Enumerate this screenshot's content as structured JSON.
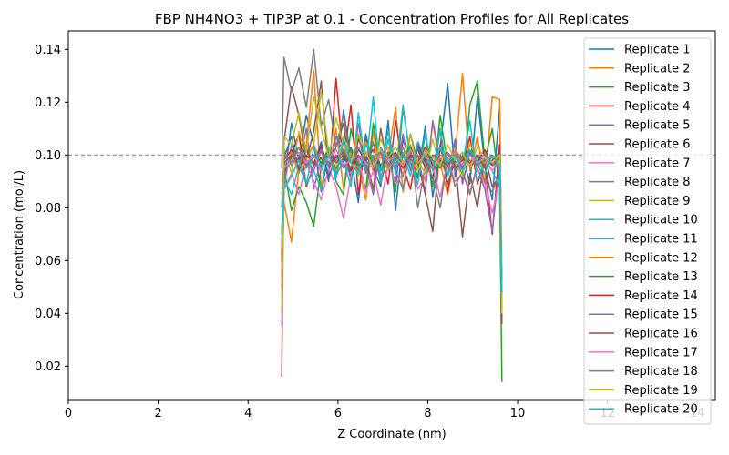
{
  "chart_data": {
    "type": "line",
    "title": "FBP NH4NO3 + TIP3P at 0.1 - Concentration Profiles for All Replicates",
    "xlabel": "Z Coordinate (nm)",
    "ylabel": "Concentration (mol/L)",
    "xlim": [
      0,
      14.4
    ],
    "ylim": [
      0.007,
      0.147
    ],
    "xticks": [
      "0",
      "2",
      "4",
      "6",
      "8",
      "10",
      "12",
      "14"
    ],
    "yticks": [
      "0.02",
      "0.04",
      "0.06",
      "0.08",
      "0.10",
      "0.12",
      "0.14"
    ],
    "reference_line": {
      "y": 0.1,
      "style": "dashed",
      "color": "#808080"
    },
    "grid": false,
    "legend_position": "top-right",
    "colors": [
      "#1f77b4",
      "#ff7f0e",
      "#2ca02c",
      "#d62728",
      "#9467bd",
      "#8c564b",
      "#e377c2",
      "#7f7f7f",
      "#bcbd22",
      "#17becf"
    ],
    "z_start": 4.75,
    "z_end": 9.65,
    "z_step": 0.05,
    "series": [
      {
        "name": "Replicate 1",
        "start": 0.06,
        "end": 0.045,
        "values": [
          0.09,
          0.112,
          0.098,
          0.115,
          0.104,
          0.086,
          0.101,
          0.093,
          0.117,
          0.099,
          0.082,
          0.108,
          0.095,
          0.088,
          0.113,
          0.079,
          0.106,
          0.097,
          0.091,
          0.111,
          0.084,
          0.103,
          0.127,
          0.092,
          0.1,
          0.089,
          0.122,
          0.096,
          0.083,
          0.118
        ]
      },
      {
        "name": "Replicate 2",
        "start": 0.05,
        "end": 0.048,
        "values": [
          0.082,
          0.067,
          0.095,
          0.104,
          0.132,
          0.088,
          0.093,
          0.11,
          0.087,
          0.101,
          0.096,
          0.083,
          0.109,
          0.092,
          0.099,
          0.118,
          0.086,
          0.104,
          0.095,
          0.09,
          0.112,
          0.097,
          0.085,
          0.1,
          0.131,
          0.094,
          0.107,
          0.089,
          0.122,
          0.121
        ]
      },
      {
        "name": "Replicate 3",
        "start": 0.07,
        "end": 0.014,
        "values": [
          0.095,
          0.079,
          0.088,
          0.082,
          0.073,
          0.096,
          0.103,
          0.09,
          0.085,
          0.11,
          0.097,
          0.087,
          0.112,
          0.094,
          0.101,
          0.086,
          0.118,
          0.099,
          0.092,
          0.108,
          0.088,
          0.115,
          0.096,
          0.104,
          0.09,
          0.119,
          0.128,
          0.098,
          0.11,
          0.087
        ]
      },
      {
        "name": "Replicate 4",
        "start": 0.07,
        "end": 0.038,
        "values": [
          0.093,
          0.1,
          0.108,
          0.088,
          0.096,
          0.104,
          0.09,
          0.129,
          0.097,
          0.119,
          0.085,
          0.106,
          0.094,
          0.101,
          0.089,
          0.113,
          0.096,
          0.087,
          0.104,
          0.098,
          0.091,
          0.11,
          0.086,
          0.102,
          0.095,
          0.107,
          0.089,
          0.097,
          0.07,
          0.104
        ]
      },
      {
        "name": "Replicate 5",
        "start": 0.04,
        "end": 0.047,
        "values": [
          0.088,
          0.104,
          0.095,
          0.11,
          0.087,
          0.099,
          0.093,
          0.107,
          0.101,
          0.091,
          0.112,
          0.096,
          0.085,
          0.103,
          0.097,
          0.09,
          0.108,
          0.094,
          0.1,
          0.086,
          0.113,
          0.098,
          0.092,
          0.106,
          0.089,
          0.101,
          0.095,
          0.087,
          0.071,
          0.096
        ]
      },
      {
        "name": "Replicate 6",
        "start": 0.016,
        "end": 0.036,
        "values": [
          0.105,
          0.126,
          0.115,
          0.098,
          0.109,
          0.128,
          0.094,
          0.103,
          0.112,
          0.09,
          0.106,
          0.099,
          0.087,
          0.11,
          0.095,
          0.101,
          0.092,
          0.108,
          0.097,
          0.085,
          0.071,
          0.104,
          0.089,
          0.098,
          0.069,
          0.093,
          0.08,
          0.1,
          0.088,
          0.092
        ]
      },
      {
        "name": "Replicate 7",
        "start": 0.035,
        "end": 0.043,
        "values": [
          0.087,
          0.093,
          0.085,
          0.097,
          0.09,
          0.083,
          0.095,
          0.088,
          0.076,
          0.092,
          0.099,
          0.086,
          0.094,
          0.081,
          0.097,
          0.089,
          0.093,
          0.1,
          0.087,
          0.092,
          0.096,
          0.084,
          0.098,
          0.09,
          0.093,
          0.086,
          0.095,
          0.089,
          0.078,
          0.091
        ]
      },
      {
        "name": "Replicate 8",
        "start": 0.095,
        "end": 0.05,
        "values": [
          0.137,
          0.124,
          0.133,
          0.118,
          0.14,
          0.111,
          0.121,
          0.103,
          0.115,
          0.097,
          0.108,
          0.093,
          0.105,
          0.089,
          0.1,
          0.094,
          0.087,
          0.103,
          0.08,
          0.096,
          0.092,
          0.08,
          0.099,
          0.088,
          0.094,
          0.085,
          0.097,
          0.09,
          0.086,
          0.093
        ]
      },
      {
        "name": "Replicate 9",
        "start": 0.04,
        "end": 0.04,
        "values": [
          0.103,
          0.093,
          0.109,
          0.098,
          0.104,
          0.124,
          0.101,
          0.095,
          0.107,
          0.099,
          0.092,
          0.105,
          0.097,
          0.102,
          0.094,
          0.1,
          0.096,
          0.103,
          0.098,
          0.093,
          0.106,
          0.095,
          0.101,
          0.097,
          0.092,
          0.104,
          0.099,
          0.095,
          0.1,
          0.097
        ]
      },
      {
        "name": "Replicate 10",
        "start": 0.085,
        "end": 0.05,
        "values": [
          0.091,
          0.085,
          0.096,
          0.089,
          0.094,
          0.087,
          0.103,
          0.092,
          0.098,
          0.088,
          0.116,
          0.095,
          0.122,
          0.09,
          0.106,
          0.093,
          0.119,
          0.097,
          0.089,
          0.108,
          0.094,
          0.11,
          0.092,
          0.099,
          0.096,
          0.113,
          0.09,
          0.098,
          0.094,
          0.088
        ]
      },
      {
        "name": "Replicate 11",
        "start": 0.08,
        "end": 0.048,
        "values": [
          0.099,
          0.107,
          0.094,
          0.102,
          0.096,
          0.105,
          0.091,
          0.1,
          0.097,
          0.103,
          0.094,
          0.099,
          0.102,
          0.096,
          0.1,
          0.098,
          0.101,
          0.095,
          0.103,
          0.097,
          0.099,
          0.102,
          0.096,
          0.1,
          0.098,
          0.101,
          0.097,
          0.099,
          0.096,
          0.1
        ]
      },
      {
        "name": "Replicate 12",
        "start": 0.058,
        "end": 0.045,
        "values": [
          0.096,
          0.101,
          0.093,
          0.099,
          0.104,
          0.097,
          0.1,
          0.094,
          0.102,
          0.098,
          0.095,
          0.101,
          0.097,
          0.099,
          0.103,
          0.096,
          0.1,
          0.098,
          0.094,
          0.101,
          0.097,
          0.099,
          0.095,
          0.102,
          0.098,
          0.096,
          0.1,
          0.097,
          0.099,
          0.095
        ]
      },
      {
        "name": "Replicate 13",
        "start": 0.06,
        "end": 0.042,
        "values": [
          0.094,
          0.099,
          0.103,
          0.096,
          0.1,
          0.097,
          0.101,
          0.095,
          0.099,
          0.102,
          0.096,
          0.098,
          0.1,
          0.094,
          0.101,
          0.097,
          0.099,
          0.103,
          0.096,
          0.1,
          0.098,
          0.095,
          0.101,
          0.097,
          0.099,
          0.102,
          0.096,
          0.098,
          0.1,
          0.097
        ]
      },
      {
        "name": "Replicate 14",
        "start": 0.062,
        "end": 0.044,
        "values": [
          0.098,
          0.102,
          0.095,
          0.1,
          0.097,
          0.103,
          0.096,
          0.099,
          0.101,
          0.094,
          0.1,
          0.098,
          0.102,
          0.096,
          0.099,
          0.101,
          0.095,
          0.1,
          0.097,
          0.103,
          0.096,
          0.099,
          0.101,
          0.095,
          0.098,
          0.1,
          0.097,
          0.102,
          0.096,
          0.099
        ]
      },
      {
        "name": "Replicate 15",
        "start": 0.055,
        "end": 0.046,
        "values": [
          0.101,
          0.096,
          0.1,
          0.098,
          0.094,
          0.102,
          0.097,
          0.1,
          0.095,
          0.099,
          0.103,
          0.096,
          0.098,
          0.101,
          0.097,
          0.095,
          0.1,
          0.098,
          0.102,
          0.096,
          0.099,
          0.097,
          0.101,
          0.094,
          0.1,
          0.098,
          0.096,
          0.101,
          0.097,
          0.095
        ]
      },
      {
        "name": "Replicate 16",
        "start": 0.05,
        "end": 0.041,
        "values": [
          0.097,
          0.1,
          0.098,
          0.103,
          0.096,
          0.099,
          0.101,
          0.097,
          0.1,
          0.095,
          0.102,
          0.098,
          0.099,
          0.096,
          0.101,
          0.1,
          0.097,
          0.099,
          0.102,
          0.095,
          0.1,
          0.098,
          0.096,
          0.101,
          0.099,
          0.097,
          0.1,
          0.095,
          0.098,
          0.101
        ]
      },
      {
        "name": "Replicate 17",
        "start": 0.052,
        "end": 0.043,
        "values": [
          0.095,
          0.098,
          0.101,
          0.097,
          0.1,
          0.094,
          0.099,
          0.102,
          0.096,
          0.098,
          0.1,
          0.097,
          0.095,
          0.101,
          0.098,
          0.099,
          0.096,
          0.102,
          0.097,
          0.1,
          0.095,
          0.099,
          0.098,
          0.101,
          0.096,
          0.1,
          0.097,
          0.099,
          0.094,
          0.098
        ]
      },
      {
        "name": "Replicate 18",
        "start": 0.066,
        "end": 0.047,
        "values": [
          0.1,
          0.097,
          0.103,
          0.095,
          0.099,
          0.101,
          0.096,
          0.098,
          0.102,
          0.097,
          0.1,
          0.094,
          0.099,
          0.101,
          0.096,
          0.098,
          0.103,
          0.095,
          0.1,
          0.097,
          0.099,
          0.102,
          0.096,
          0.098,
          0.101,
          0.095,
          0.099,
          0.1,
          0.097,
          0.096
        ]
      },
      {
        "name": "Replicate 19",
        "start": 0.045,
        "end": 0.04,
        "values": [
          0.107,
          0.104,
          0.116,
          0.101,
          0.122,
          0.11,
          0.099,
          0.114,
          0.104,
          0.097,
          0.108,
          0.101,
          0.095,
          0.106,
          0.099,
          0.103,
          0.097,
          0.108,
          0.094,
          0.102,
          0.099,
          0.096,
          0.104,
          0.098,
          0.101,
          0.095,
          0.103,
          0.099,
          0.097,
          0.1
        ]
      },
      {
        "name": "Replicate 20",
        "start": 0.07,
        "end": 0.048,
        "values": [
          0.087,
          0.092,
          0.098,
          0.089,
          0.103,
          0.095,
          0.1,
          0.091,
          0.106,
          0.097,
          0.093,
          0.104,
          0.098,
          0.094,
          0.109,
          0.096,
          0.101,
          0.092,
          0.105,
          0.099,
          0.095,
          0.103,
          0.097,
          0.1,
          0.094,
          0.102,
          0.098,
          0.093,
          0.1,
          0.096
        ]
      }
    ]
  }
}
